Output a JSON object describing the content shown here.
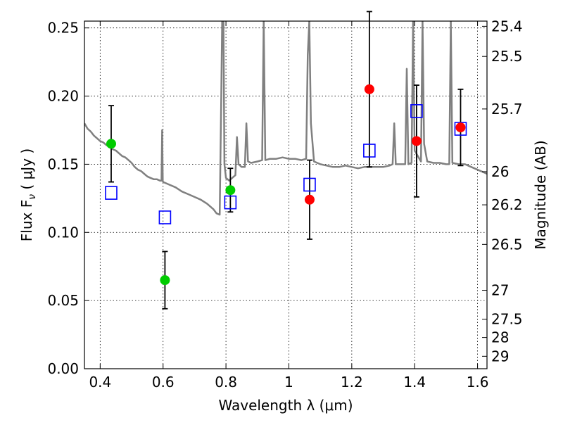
{
  "chart_data": {
    "type": "scatter",
    "xlabel": "Wavelength  λ (μm)",
    "ylabel_left": "Flux  F",
    "ylabel_left_sub": "ν",
    "ylabel_left_unit": " ( μJy )",
    "ylabel_right": "Magnitude (AB)",
    "xlim": [
      0.35,
      1.63
    ],
    "ylim": [
      0.0,
      0.255
    ],
    "grid": true,
    "x_ticks": [
      0.4,
      0.6,
      0.8,
      1.0,
      1.2,
      1.4,
      1.6
    ],
    "x_tick_labels": [
      "0.4",
      "0.6",
      "0.8",
      "1",
      "1.2",
      "1.4",
      "1.6"
    ],
    "y_ticks": [
      0.0,
      0.05,
      0.1,
      0.15,
      0.2,
      0.25
    ],
    "y_tick_labels": [
      "0.00",
      "0.05",
      "0.10",
      "0.15",
      "0.20",
      "0.25"
    ],
    "right_axis_ticks": [
      {
        "label": "25.4",
        "mag": 25.4
      },
      {
        "label": "25.5",
        "mag": 25.5
      },
      {
        "label": "25.7",
        "mag": 25.7
      },
      {
        "label": "26",
        "mag": 26.0
      },
      {
        "label": "26.2",
        "mag": 26.2
      },
      {
        "label": "26.5",
        "mag": 26.5
      },
      {
        "label": "27",
        "mag": 27.0
      },
      {
        "label": "27.5",
        "mag": 27.5
      },
      {
        "label": "28",
        "mag": 28.0
      },
      {
        "label": "29",
        "mag": 29.0
      }
    ],
    "green_points": [
      {
        "x": 0.435,
        "y": 0.165,
        "err": 0.028
      },
      {
        "x": 0.606,
        "y": 0.065,
        "err": 0.021
      },
      {
        "x": 0.814,
        "y": 0.131,
        "err": 0.016
      }
    ],
    "red_points": [
      {
        "x": 1.066,
        "y": 0.124,
        "err": 0.029
      },
      {
        "x": 1.256,
        "y": 0.205,
        "err": 0.057
      },
      {
        "x": 1.406,
        "y": 0.167,
        "err": 0.041
      },
      {
        "x": 1.546,
        "y": 0.177,
        "err": 0.028
      }
    ],
    "model_points": [
      {
        "x": 0.435,
        "y": 0.129
      },
      {
        "x": 0.606,
        "y": 0.111
      },
      {
        "x": 0.814,
        "y": 0.122
      },
      {
        "x": 1.066,
        "y": 0.135
      },
      {
        "x": 1.256,
        "y": 0.16
      },
      {
        "x": 1.406,
        "y": 0.189
      },
      {
        "x": 1.546,
        "y": 0.176
      }
    ],
    "spectrum": [
      [
        0.35,
        0.18
      ],
      [
        0.36,
        0.176
      ],
      [
        0.37,
        0.174
      ],
      [
        0.38,
        0.171
      ],
      [
        0.39,
        0.169
      ],
      [
        0.4,
        0.167
      ],
      [
        0.41,
        0.166
      ],
      [
        0.42,
        0.164
      ],
      [
        0.43,
        0.163
      ],
      [
        0.44,
        0.161
      ],
      [
        0.45,
        0.16
      ],
      [
        0.46,
        0.158
      ],
      [
        0.47,
        0.156
      ],
      [
        0.48,
        0.155
      ],
      [
        0.49,
        0.153
      ],
      [
        0.5,
        0.151
      ],
      [
        0.51,
        0.148
      ],
      [
        0.52,
        0.146
      ],
      [
        0.53,
        0.145
      ],
      [
        0.54,
        0.143
      ],
      [
        0.55,
        0.141
      ],
      [
        0.56,
        0.14
      ],
      [
        0.57,
        0.139
      ],
      [
        0.58,
        0.139
      ],
      [
        0.59,
        0.138
      ],
      [
        0.595,
        0.138
      ],
      [
        0.597,
        0.175
      ],
      [
        0.599,
        0.138
      ],
      [
        0.6,
        0.137
      ],
      [
        0.62,
        0.135
      ],
      [
        0.64,
        0.133
      ],
      [
        0.66,
        0.13
      ],
      [
        0.68,
        0.128
      ],
      [
        0.7,
        0.126
      ],
      [
        0.72,
        0.124
      ],
      [
        0.74,
        0.121
      ],
      [
        0.76,
        0.117
      ],
      [
        0.77,
        0.114
      ],
      [
        0.78,
        0.113
      ],
      [
        0.785,
        0.2
      ],
      [
        0.788,
        0.255
      ],
      [
        0.792,
        0.255
      ],
      [
        0.795,
        0.15
      ],
      [
        0.8,
        0.14
      ],
      [
        0.81,
        0.138
      ],
      [
        0.82,
        0.14
      ],
      [
        0.83,
        0.142
      ],
      [
        0.835,
        0.17
      ],
      [
        0.84,
        0.15
      ],
      [
        0.85,
        0.148
      ],
      [
        0.86,
        0.148
      ],
      [
        0.865,
        0.18
      ],
      [
        0.87,
        0.152
      ],
      [
        0.88,
        0.151
      ],
      [
        0.9,
        0.152
      ],
      [
        0.915,
        0.153
      ],
      [
        0.92,
        0.255
      ],
      [
        0.925,
        0.153
      ],
      [
        0.94,
        0.154
      ],
      [
        0.96,
        0.154
      ],
      [
        0.98,
        0.155
      ],
      [
        1.0,
        0.154
      ],
      [
        1.02,
        0.154
      ],
      [
        1.04,
        0.153
      ],
      [
        1.055,
        0.154
      ],
      [
        1.06,
        0.23
      ],
      [
        1.065,
        0.255
      ],
      [
        1.07,
        0.18
      ],
      [
        1.08,
        0.152
      ],
      [
        1.1,
        0.15
      ],
      [
        1.12,
        0.149
      ],
      [
        1.14,
        0.148
      ],
      [
        1.16,
        0.148
      ],
      [
        1.18,
        0.149
      ],
      [
        1.2,
        0.148
      ],
      [
        1.22,
        0.147
      ],
      [
        1.24,
        0.148
      ],
      [
        1.26,
        0.148
      ],
      [
        1.28,
        0.148
      ],
      [
        1.3,
        0.148
      ],
      [
        1.32,
        0.149
      ],
      [
        1.33,
        0.15
      ],
      [
        1.335,
        0.18
      ],
      [
        1.34,
        0.15
      ],
      [
        1.36,
        0.15
      ],
      [
        1.37,
        0.15
      ],
      [
        1.375,
        0.22
      ],
      [
        1.38,
        0.15
      ],
      [
        1.39,
        0.151
      ],
      [
        1.395,
        0.255
      ],
      [
        1.4,
        0.16
      ],
      [
        1.42,
        0.152
      ],
      [
        1.425,
        0.255
      ],
      [
        1.43,
        0.165
      ],
      [
        1.44,
        0.152
      ],
      [
        1.46,
        0.151
      ],
      [
        1.48,
        0.151
      ],
      [
        1.5,
        0.15
      ],
      [
        1.51,
        0.15
      ],
      [
        1.515,
        0.255
      ],
      [
        1.52,
        0.151
      ],
      [
        1.54,
        0.15
      ],
      [
        1.56,
        0.15
      ],
      [
        1.58,
        0.148
      ],
      [
        1.6,
        0.146
      ],
      [
        1.62,
        0.144
      ],
      [
        1.63,
        0.143
      ]
    ],
    "colors": {
      "green": "#00cc00",
      "red": "#ff0000",
      "model": "#0000ff",
      "spectrum": "#808080",
      "grid": "#000000"
    }
  }
}
